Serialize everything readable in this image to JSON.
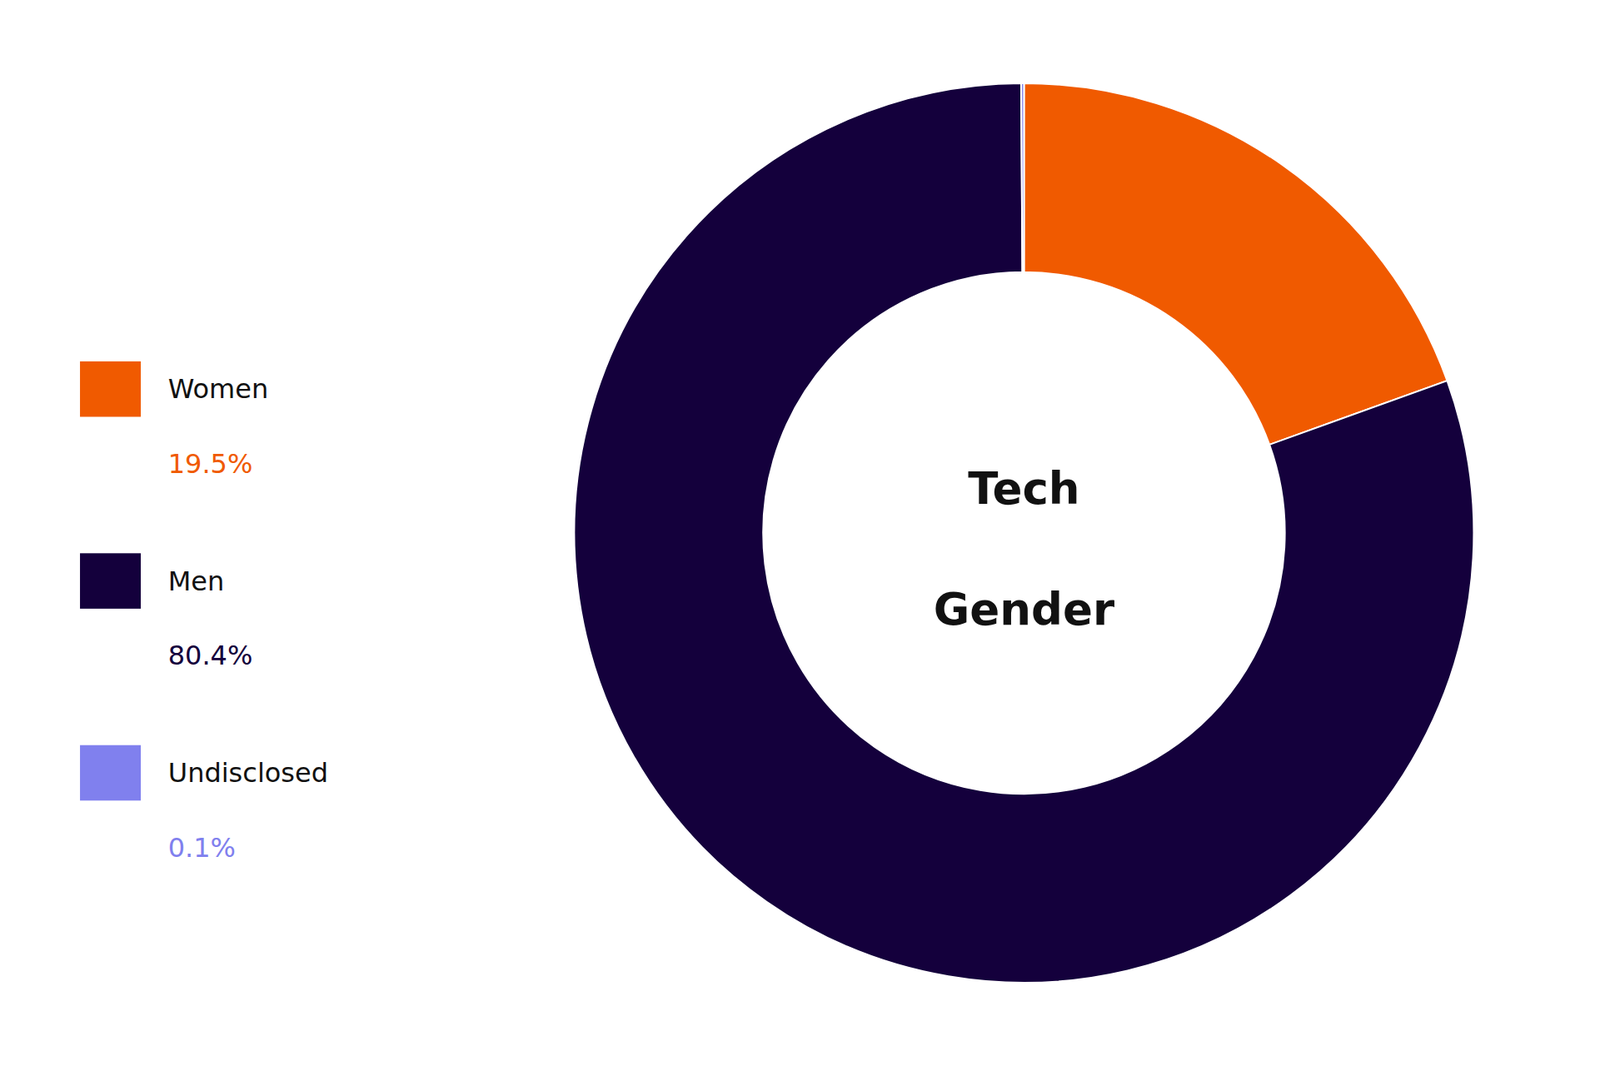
{
  "chart_data": {
    "type": "donut",
    "categories": [
      "Women",
      "Men",
      "Undisclosed"
    ],
    "values": [
      19.5,
      80.4,
      0.1
    ],
    "value_labels": [
      "19.5%",
      "80.4%",
      "0.1%"
    ],
    "colors": [
      "#F05A00",
      "#14003C",
      "#8080EE"
    ],
    "annotations": [
      "Tech",
      "Gender"
    ],
    "legend": "left"
  }
}
